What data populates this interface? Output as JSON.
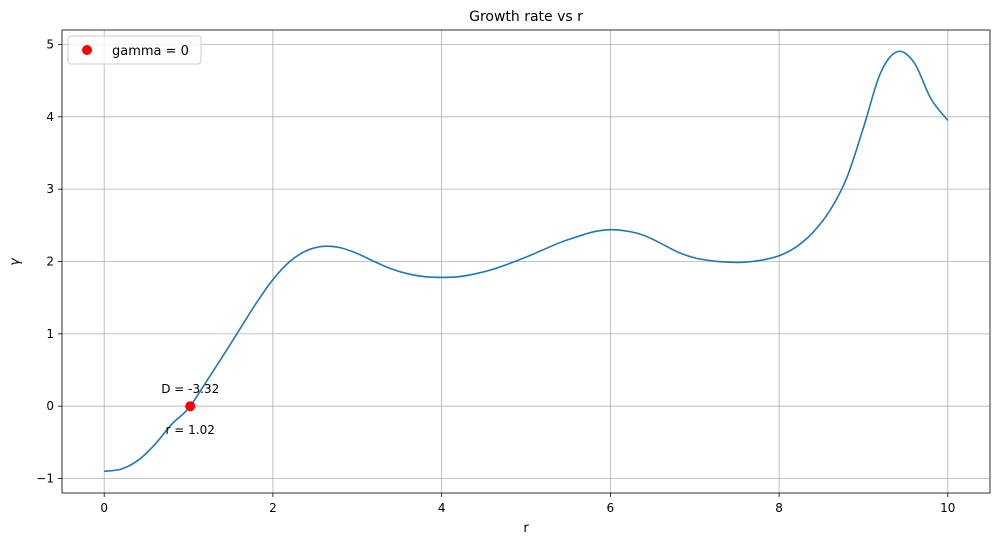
{
  "chart_data": {
    "type": "line",
    "title": "Growth rate vs r",
    "xlabel": "r",
    "ylabel": "γ",
    "xlim": [
      -0.5,
      10.5
    ],
    "ylim": [
      -1.2,
      5.2
    ],
    "xticks": [
      0,
      2,
      4,
      6,
      8,
      10
    ],
    "yticks": [
      -1,
      0,
      1,
      2,
      3,
      4,
      5
    ],
    "grid": true,
    "legend_position": "top-left",
    "series": [
      {
        "color": "#1f77b4",
        "x": [
          0.0,
          0.2,
          0.4,
          0.6,
          0.8,
          1.0,
          1.2,
          1.4,
          1.6,
          1.8,
          2.0,
          2.2,
          2.4,
          2.6,
          2.8,
          3.0,
          3.2,
          3.4,
          3.6,
          3.8,
          4.0,
          4.2,
          4.4,
          4.6,
          4.8,
          5.0,
          5.2,
          5.4,
          5.6,
          5.8,
          6.0,
          6.2,
          6.4,
          6.6,
          6.8,
          7.0,
          7.2,
          7.4,
          7.6,
          7.8,
          8.0,
          8.2,
          8.4,
          8.6,
          8.8,
          9.0,
          9.2,
          9.4,
          9.6,
          9.8,
          10.0
        ],
        "y": [
          -0.9,
          -0.87,
          -0.75,
          -0.53,
          -0.25,
          -0.03,
          0.32,
          0.68,
          1.05,
          1.42,
          1.75,
          2.0,
          2.15,
          2.21,
          2.19,
          2.11,
          2.0,
          1.9,
          1.83,
          1.79,
          1.78,
          1.79,
          1.83,
          1.89,
          1.97,
          2.06,
          2.16,
          2.26,
          2.34,
          2.41,
          2.44,
          2.42,
          2.36,
          2.25,
          2.13,
          2.05,
          2.01,
          1.99,
          1.99,
          2.02,
          2.08,
          2.2,
          2.4,
          2.7,
          3.15,
          3.85,
          4.6,
          4.9,
          4.75,
          4.25,
          3.95
        ]
      }
    ],
    "markers": [
      {
        "name": "gamma = 0",
        "x": 1.02,
        "y": 0.0,
        "color": "#ff0000"
      }
    ],
    "annotations": [
      {
        "text": "D = -3.32",
        "x": 1.02,
        "y": 0.0,
        "position": "above"
      },
      {
        "text": "r = 1.02",
        "x": 1.02,
        "y": 0.0,
        "position": "below"
      }
    ]
  }
}
